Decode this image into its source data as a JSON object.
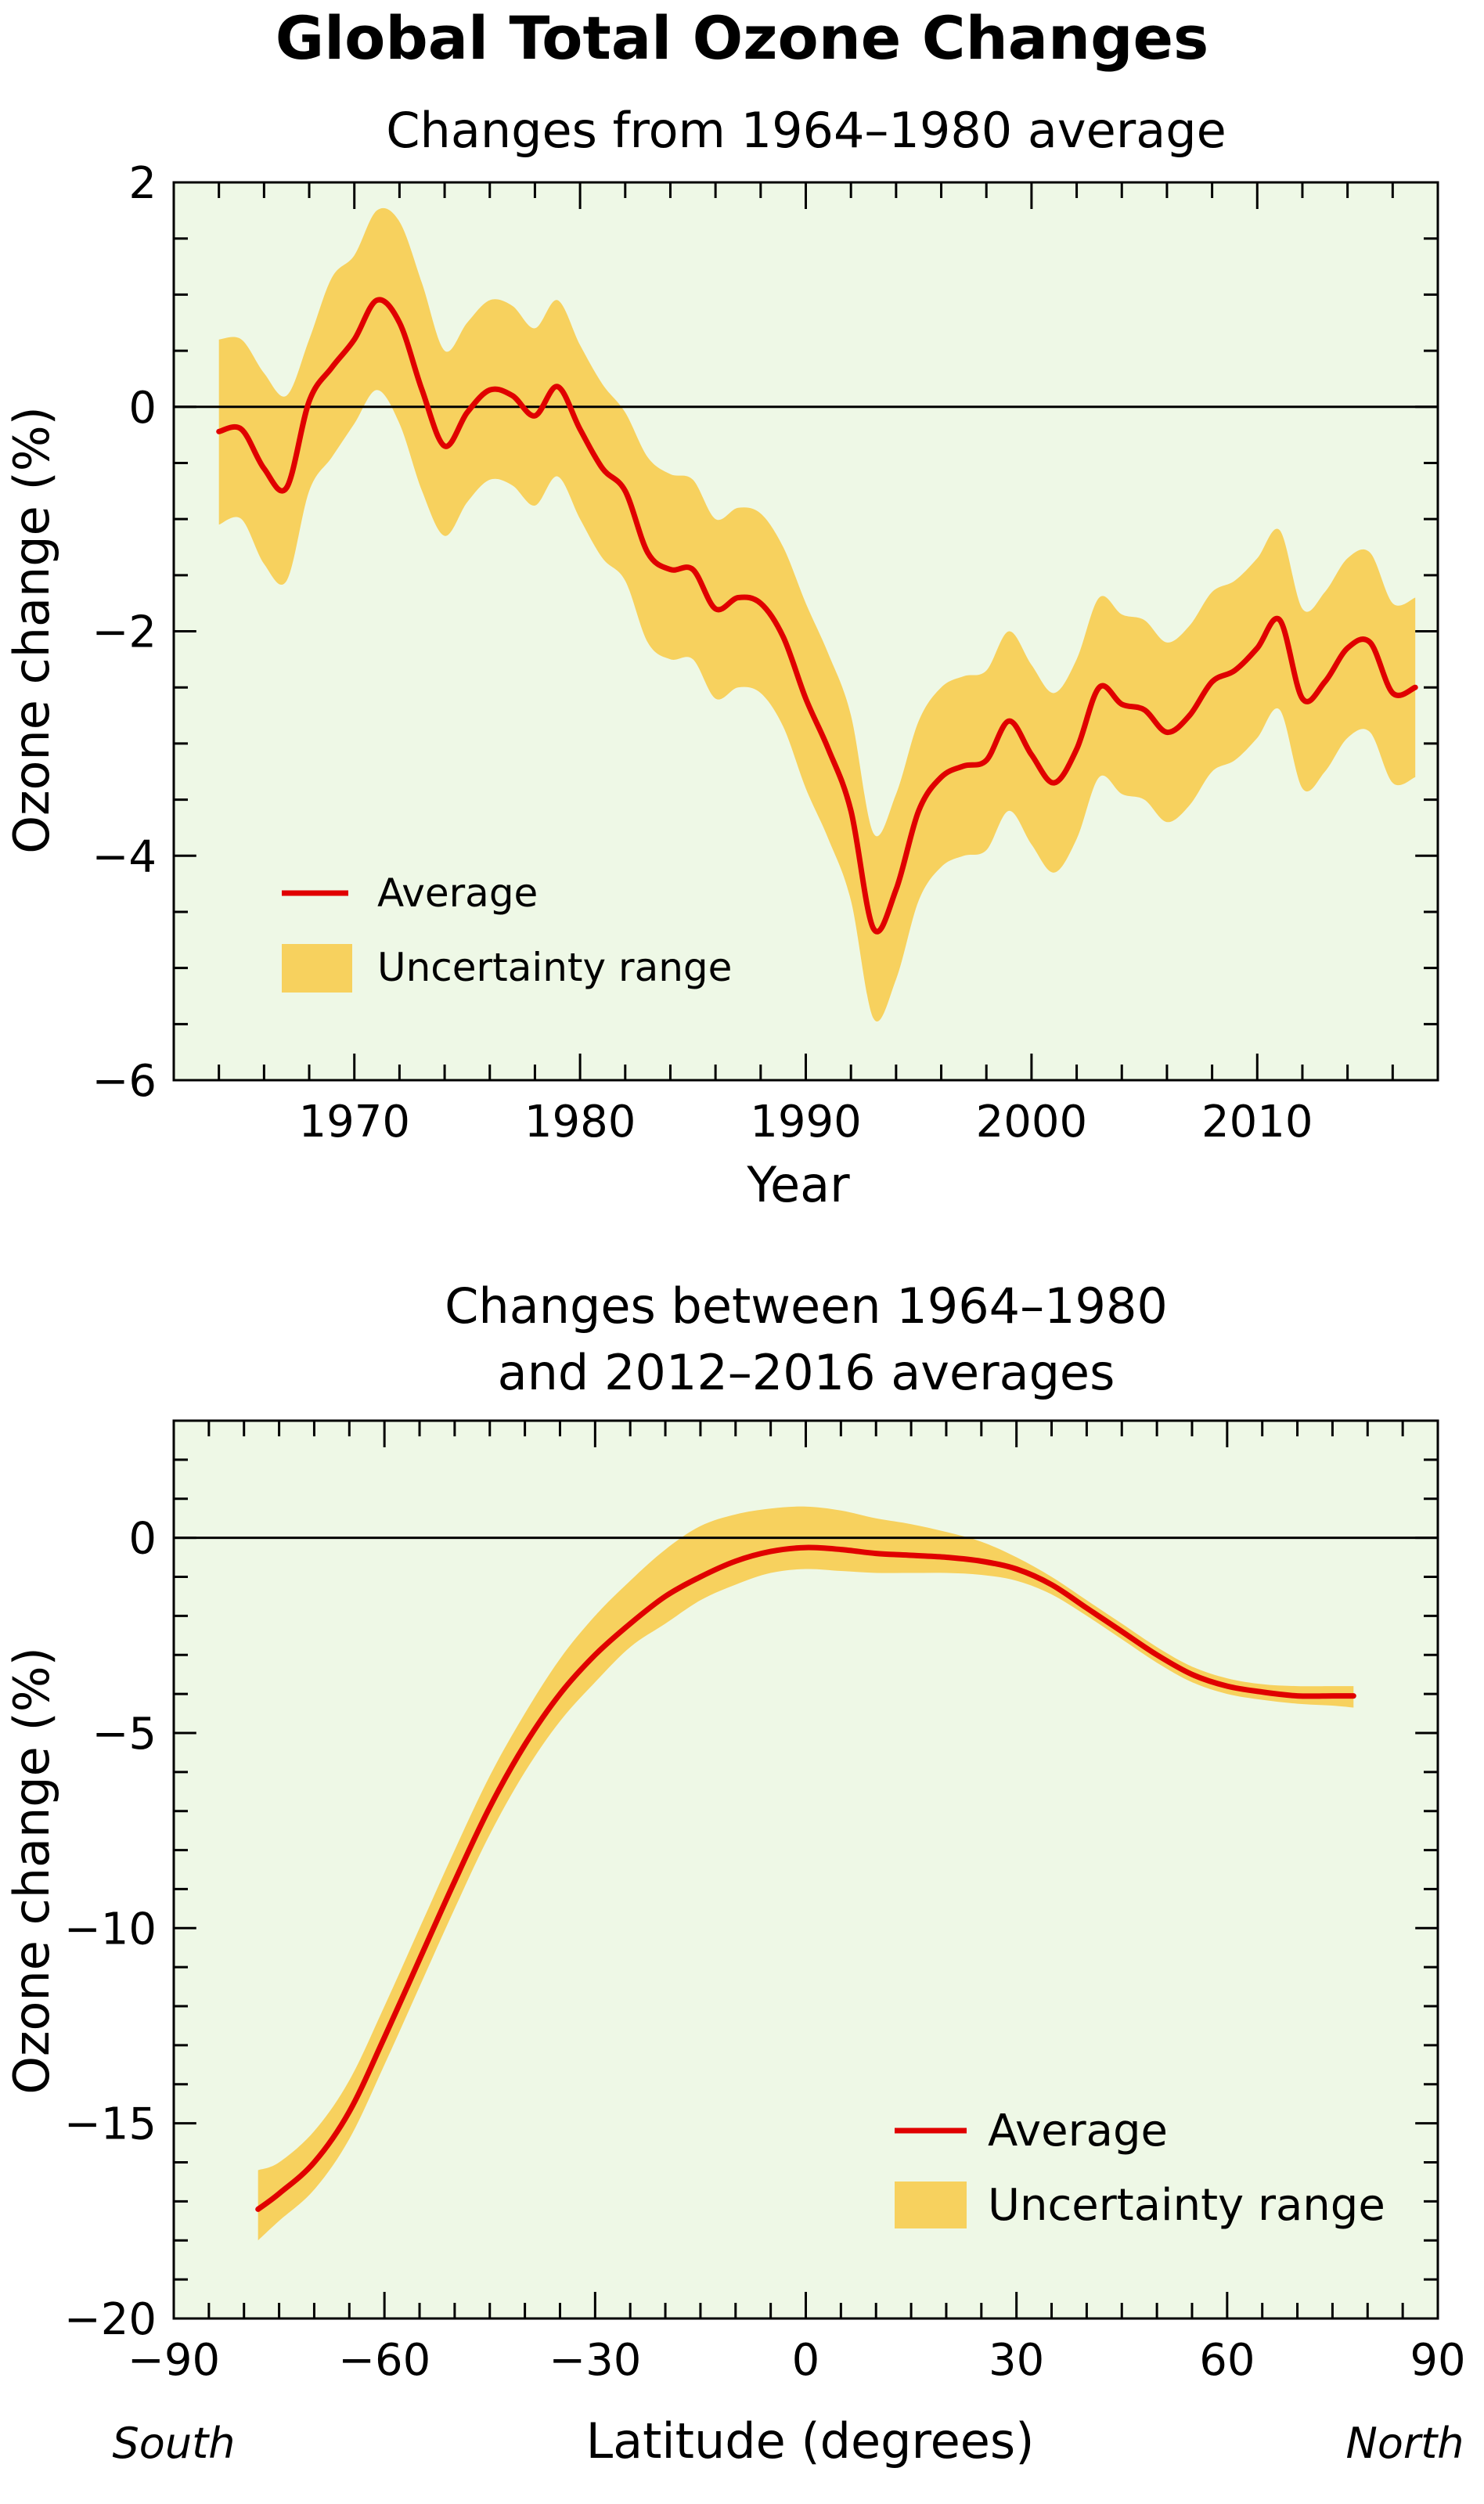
{
  "figure": {
    "title": "Global Total Ozone Changes"
  },
  "colors": {
    "background": "#eef8e6",
    "band": "#f7d15e",
    "average": "#e00000"
  },
  "chart_data": [
    {
      "type": "line",
      "title": "Changes from 1964–1980 average",
      "xlabel": "Year",
      "ylabel": "Ozone change (%)",
      "xlim": [
        1962,
        2018
      ],
      "ylim": [
        -6,
        2
      ],
      "xticks": [
        1970,
        1980,
        1990,
        2000,
        2010
      ],
      "xtick_labels": [
        "1970",
        "1980",
        "1990",
        "2000",
        "2010"
      ],
      "yticks": [
        -6,
        -4,
        -2,
        0,
        2
      ],
      "ytick_labels": [
        "−6",
        "−4",
        "−2",
        "0",
        "2"
      ],
      "zero_line": true,
      "legend": {
        "placement": "bottom-left",
        "average_label": "Average",
        "band_label": "Uncertainty range"
      },
      "x": [
        1964,
        1965,
        1966,
        1967,
        1968,
        1969,
        1970,
        1971,
        1972,
        1973,
        1974,
        1975,
        1976,
        1977,
        1978,
        1979,
        1980,
        1981,
        1982,
        1983,
        1984,
        1985,
        1986,
        1987,
        1988,
        1989,
        1990,
        1991,
        1992,
        1993,
        1994,
        1995,
        1996,
        1997,
        1998,
        1999,
        2000,
        2001,
        2002,
        2003,
        2004,
        2005,
        2006,
        2007,
        2008,
        2009,
        2010,
        2011,
        2012,
        2013,
        2014,
        2015,
        2016,
        2017
      ],
      "series": [
        {
          "name": "Average",
          "values": [
            -0.22,
            -0.2,
            -0.55,
            -0.72,
            0.05,
            0.35,
            0.6,
            0.95,
            0.75,
            0.15,
            -0.35,
            -0.05,
            0.15,
            0.1,
            -0.08,
            0.18,
            -0.2,
            -0.55,
            -0.75,
            -1.3,
            -1.45,
            -1.45,
            -1.8,
            -1.7,
            -1.75,
            -2.05,
            -2.6,
            -3.05,
            -3.6,
            -4.65,
            -4.3,
            -3.6,
            -3.3,
            -3.2,
            -3.15,
            -2.8,
            -3.1,
            -3.35,
            -3.05,
            -2.5,
            -2.65,
            -2.7,
            -2.9,
            -2.75,
            -2.45,
            -2.35,
            -2.15,
            -1.9,
            -2.6,
            -2.45,
            -2.15,
            -2.1,
            -2.55,
            -2.5
          ]
        }
      ],
      "band": {
        "name": "Uncertainty range",
        "upper": [
          0.6,
          0.6,
          0.3,
          0.1,
          0.6,
          1.15,
          1.35,
          1.75,
          1.65,
          1.1,
          0.5,
          0.75,
          0.95,
          0.9,
          0.7,
          0.95,
          0.55,
          0.2,
          -0.05,
          -0.45,
          -0.6,
          -0.65,
          -1.0,
          -0.9,
          -0.95,
          -1.25,
          -1.75,
          -2.2,
          -2.75,
          -3.8,
          -3.45,
          -2.8,
          -2.5,
          -2.4,
          -2.35,
          -2.0,
          -2.3,
          -2.55,
          -2.25,
          -1.7,
          -1.85,
          -1.9,
          -2.1,
          -1.95,
          -1.65,
          -1.55,
          -1.35,
          -1.1,
          -1.8,
          -1.65,
          -1.35,
          -1.3,
          -1.75,
          -1.7
        ],
        "lower": [
          -1.05,
          -1.0,
          -1.4,
          -1.55,
          -0.75,
          -0.45,
          -0.15,
          0.15,
          -0.15,
          -0.75,
          -1.15,
          -0.85,
          -0.65,
          -0.7,
          -0.88,
          -0.62,
          -1.0,
          -1.35,
          -1.55,
          -2.1,
          -2.25,
          -2.25,
          -2.6,
          -2.5,
          -2.55,
          -2.85,
          -3.4,
          -3.85,
          -4.4,
          -5.45,
          -5.1,
          -4.4,
          -4.1,
          -4.0,
          -3.95,
          -3.6,
          -3.9,
          -4.15,
          -3.85,
          -3.3,
          -3.45,
          -3.5,
          -3.7,
          -3.55,
          -3.25,
          -3.15,
          -2.95,
          -2.7,
          -3.4,
          -3.25,
          -2.95,
          -2.9,
          -3.35,
          -3.3
        ]
      }
    },
    {
      "type": "line",
      "title_lines": [
        "Changes between 1964–1980",
        "and 2012–2016 averages"
      ],
      "xlabel": "Latitude (degrees)",
      "ylabel": "Ozone change (%)",
      "xlim": [
        -90,
        90
      ],
      "ylim": [
        -20,
        3
      ],
      "xticks": [
        -90,
        -60,
        -30,
        0,
        30,
        60,
        90
      ],
      "xtick_labels": [
        "−90",
        "−60",
        "−30",
        "0",
        "30",
        "60",
        "90"
      ],
      "yticks": [
        -20,
        -15,
        -10,
        -5,
        0
      ],
      "ytick_labels": [
        "−20",
        "−15",
        "−10",
        "−5",
        "0"
      ],
      "x_side_labels": {
        "left": "South",
        "right": "North"
      },
      "zero_line": true,
      "legend": {
        "placement": "bottom-right",
        "average_label": "Average",
        "band_label": "Uncertainty range"
      },
      "x": [
        -78,
        -75,
        -70,
        -65,
        -60,
        -55,
        -50,
        -45,
        -40,
        -35,
        -30,
        -25,
        -20,
        -15,
        -10,
        -5,
        0,
        5,
        10,
        15,
        20,
        25,
        30,
        35,
        40,
        45,
        50,
        55,
        60,
        65,
        70,
        75,
        78
      ],
      "series": [
        {
          "name": "Average",
          "values": [
            -17.2,
            -16.8,
            -16.0,
            -14.7,
            -12.8,
            -10.8,
            -8.8,
            -6.9,
            -5.3,
            -4.0,
            -3.0,
            -2.2,
            -1.5,
            -1.0,
            -0.6,
            -0.35,
            -0.25,
            -0.3,
            -0.4,
            -0.45,
            -0.5,
            -0.6,
            -0.8,
            -1.2,
            -1.8,
            -2.4,
            -3.0,
            -3.5,
            -3.8,
            -3.95,
            -4.05,
            -4.05,
            -4.05
          ]
        }
      ],
      "band": {
        "name": "Uncertainty range",
        "upper": [
          -16.2,
          -16.0,
          -15.2,
          -13.9,
          -12.0,
          -10.0,
          -8.0,
          -6.1,
          -4.5,
          -3.1,
          -2.0,
          -1.1,
          -0.3,
          0.3,
          0.6,
          0.75,
          0.8,
          0.7,
          0.5,
          0.35,
          0.15,
          -0.1,
          -0.5,
          -1.0,
          -1.6,
          -2.2,
          -2.8,
          -3.3,
          -3.6,
          -3.75,
          -3.8,
          -3.8,
          -3.8
        ],
        "lower": [
          -18.0,
          -17.5,
          -16.7,
          -15.4,
          -13.5,
          -11.5,
          -9.5,
          -7.6,
          -6.0,
          -4.7,
          -3.7,
          -2.8,
          -2.2,
          -1.6,
          -1.2,
          -0.9,
          -0.8,
          -0.85,
          -0.9,
          -0.9,
          -0.9,
          -0.95,
          -1.1,
          -1.45,
          -2.0,
          -2.6,
          -3.2,
          -3.7,
          -4.0,
          -4.15,
          -4.25,
          -4.3,
          -4.35
        ]
      }
    }
  ]
}
